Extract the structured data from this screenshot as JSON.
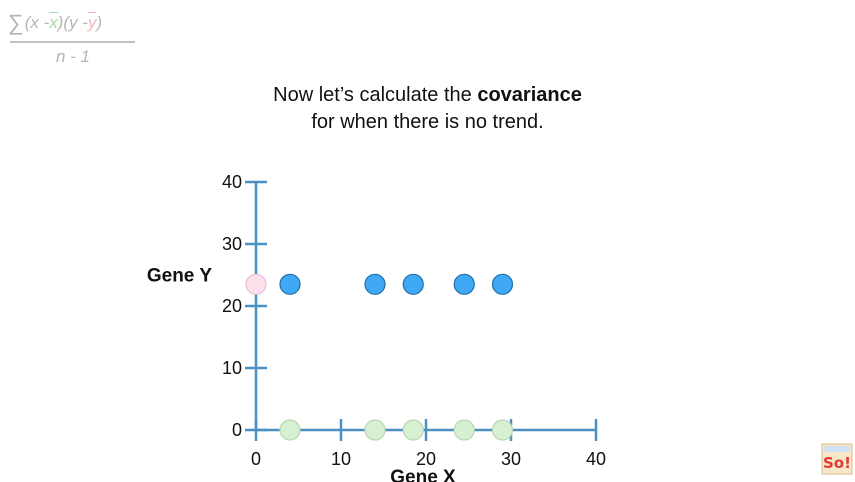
{
  "formula": {
    "sigma": "∑",
    "open1": "(x - ",
    "xbar": "x",
    "close1": ")(y - ",
    "ybar": "y",
    "close2": ")",
    "denominator": "n - 1"
  },
  "caption": {
    "line1_prefix": "Now let’s calculate the ",
    "line1_bold": "covariance",
    "line2": "for when there is no trend."
  },
  "chart_data": {
    "type": "scatter",
    "xlabel": "Gene X",
    "ylabel": "Gene Y",
    "xlim": [
      0,
      40
    ],
    "ylim": [
      0,
      40
    ],
    "x_ticks": [
      0,
      10,
      20,
      30,
      40
    ],
    "y_ticks": [
      0,
      10,
      20,
      30,
      40
    ],
    "grid": false,
    "series": [
      {
        "role": "data points",
        "color": "#3fa9f5",
        "points": [
          [
            4,
            23.5
          ],
          [
            14,
            23.5
          ],
          [
            18.5,
            23.5
          ],
          [
            24.5,
            23.5
          ],
          [
            29,
            23.5
          ]
        ]
      },
      {
        "role": "projections onto x-axis",
        "color": "#d8f0d2",
        "points": [
          [
            4,
            0
          ],
          [
            14,
            0
          ],
          [
            18.5,
            0
          ],
          [
            24.5,
            0
          ],
          [
            29,
            0
          ]
        ]
      },
      {
        "role": "projections onto y-axis",
        "color": "#fde0ec",
        "points": [
          [
            0,
            23.5
          ]
        ]
      }
    ]
  },
  "colors": {
    "axis": "#4a90c2",
    "blue_point": "#3fa9f5",
    "green_point": "#d8f0d2",
    "pink_point": "#fde0ec"
  },
  "logo": {
    "text": "So!"
  }
}
